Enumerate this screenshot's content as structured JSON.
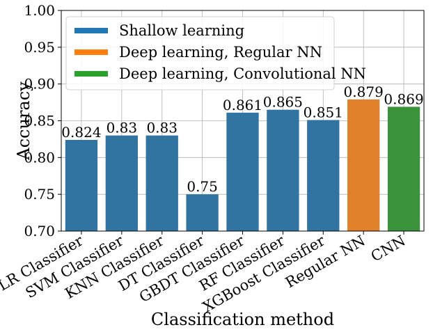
{
  "chart_data": {
    "type": "bar",
    "title": "",
    "xlabel": "Classification method",
    "ylabel": "Accuracy",
    "ylim": [
      0.7,
      1.0
    ],
    "yticks": [
      "0.70",
      "0.75",
      "0.80",
      "0.85",
      "0.90",
      "0.95",
      "1.00"
    ],
    "grid": true,
    "legend_position": "top-left",
    "categories": [
      "LR Classifier",
      "SVM Classifier",
      "KNN Classifier",
      "DT Classifier",
      "GBDT Classifier",
      "RF Classifier",
      "XGBoost Classifier",
      "Regular NN",
      "CNN"
    ],
    "values": [
      0.824,
      0.83,
      0.83,
      0.75,
      0.861,
      0.865,
      0.851,
      0.879,
      0.869
    ],
    "value_labels": [
      "0.824",
      "0.83",
      "0.83",
      "0.75",
      "0.861",
      "0.865",
      "0.851",
      "0.879",
      "0.869"
    ],
    "groups": [
      0,
      0,
      0,
      0,
      0,
      0,
      0,
      1,
      2
    ],
    "legend": [
      {
        "name": "Shallow learning",
        "color": "#1f77b4"
      },
      {
        "name": "Deep learning, Regular NN",
        "color": "#ff7f0e"
      },
      {
        "name": "Deep learning, Convolutional NN",
        "color": "#2ca02c"
      }
    ],
    "bar_colors": [
      "#3274a1",
      "#3274a1",
      "#3274a1",
      "#3274a1",
      "#3274a1",
      "#3274a1",
      "#3274a1",
      "#e1812c",
      "#3a923a"
    ]
  }
}
